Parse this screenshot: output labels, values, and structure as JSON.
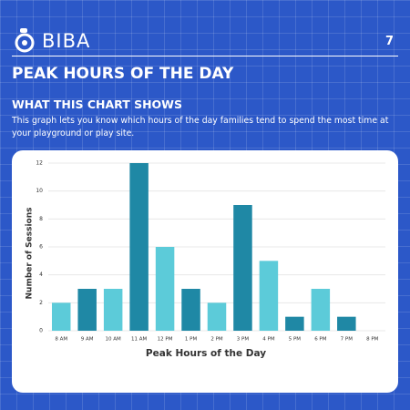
{
  "header": {
    "brand": "BIBA",
    "page_number": "7"
  },
  "title": "PEAK HOURS OF THE DAY",
  "section": {
    "heading": "WHAT THIS CHART SHOWS",
    "body_lines": [
      "This graph lets you know which hours of the day families tend to spend the most time at",
      "your playground or play site."
    ]
  },
  "chart_data": {
    "type": "bar",
    "x_label": "Peak Hours of the Day",
    "y_label": "Number of Sessions",
    "categories": [
      "8 AM",
      "9 AM",
      "10 AM",
      "11 AM",
      "12 PM",
      "1 PM",
      "2 PM",
      "3 PM",
      "4 PM",
      "5 PM",
      "6 PM",
      "7 PM",
      "8 PM"
    ],
    "values": [
      2,
      3,
      3,
      12,
      6,
      3,
      2,
      9,
      5,
      1,
      3,
      1,
      0
    ],
    "colors": [
      "#5ccbd9",
      "#1f88a5",
      "#5ccbd9",
      "#1f88a5",
      "#5ccbd9",
      "#1f88a5",
      "#5ccbd9",
      "#1f88a5",
      "#5ccbd9",
      "#1f88a5",
      "#5ccbd9",
      "#1f88a5",
      "#5ccbd9"
    ],
    "ylim": [
      0,
      12
    ],
    "yticks": [
      0,
      2,
      4,
      6,
      8,
      10,
      12
    ],
    "grid": true
  }
}
